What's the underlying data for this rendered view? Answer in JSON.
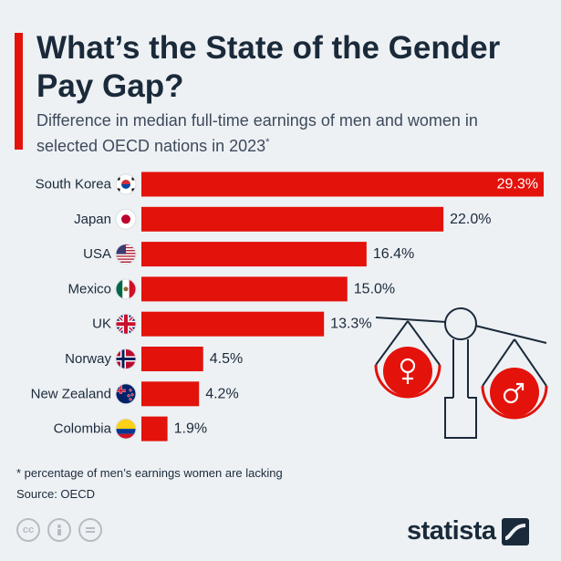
{
  "header": {
    "title": "What’s the State of the Gender Pay Gap?",
    "subtitle": "Difference in median full-time earnings of men and women in selected OECD nations in 2023",
    "subtitle_mark": "*"
  },
  "footer": {
    "footnote": "* percentage of men’s earnings women are lacking",
    "source": "Source: OECD",
    "brand": "statista",
    "license_icons": [
      "creative-commons-icon",
      "attribution-icon",
      "no-derivatives-icon"
    ]
  },
  "colors": {
    "accent": "#e3120b",
    "text": "#1a2a3a",
    "background": "#eef1f4"
  },
  "chart_data": {
    "type": "bar",
    "orientation": "horizontal",
    "categories": [
      "South Korea",
      "Japan",
      "USA",
      "Mexico",
      "UK",
      "Norway",
      "New Zealand",
      "Colombia"
    ],
    "values": [
      29.3,
      22.0,
      16.4,
      15.0,
      13.3,
      4.5,
      4.2,
      1.9
    ],
    "labels": [
      "29.3%",
      "22.0%",
      "16.4%",
      "15.0%",
      "13.3%",
      "4.5%",
      "4.2%",
      "1.9%"
    ],
    "flag_icons": [
      "south-korea-flag-icon",
      "japan-flag-icon",
      "usa-flag-icon",
      "mexico-flag-icon",
      "uk-flag-icon",
      "norway-flag-icon",
      "new-zealand-flag-icon",
      "colombia-flag-icon"
    ],
    "bar_color": "#e3120b",
    "xlim": [
      0,
      29.3
    ],
    "grid": false,
    "legend": "none"
  }
}
